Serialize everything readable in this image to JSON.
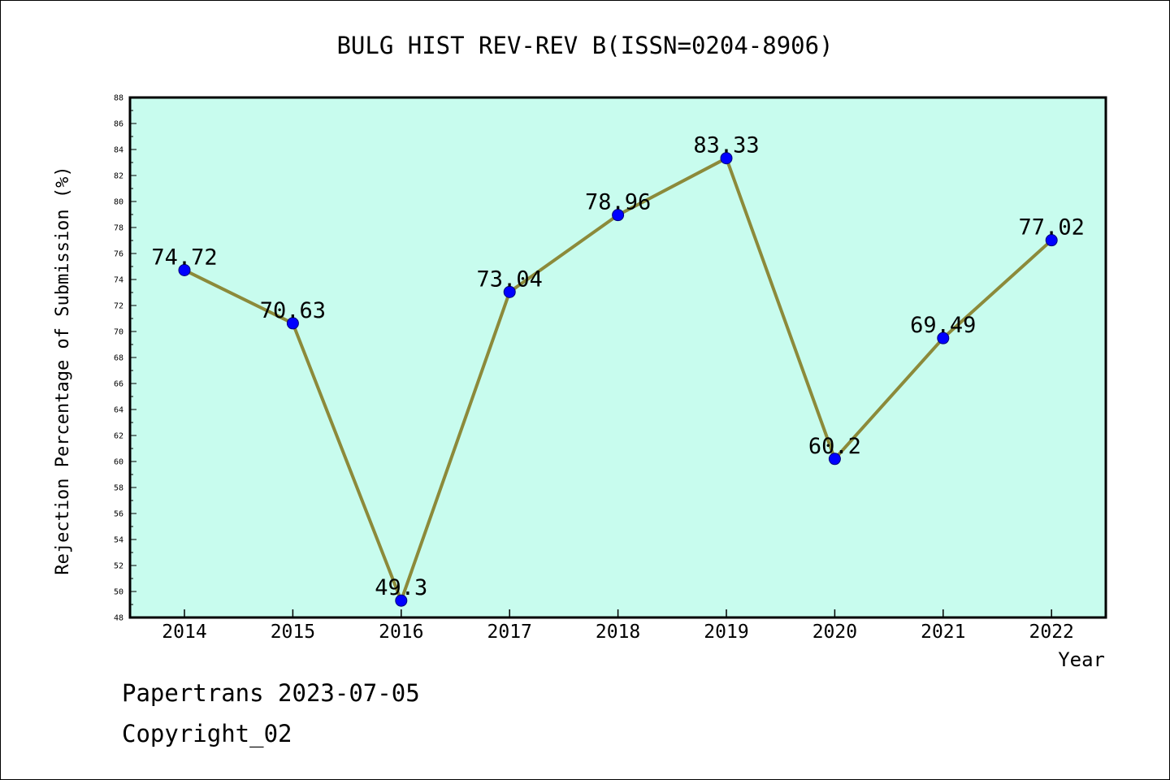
{
  "chart_data": {
    "type": "line",
    "title": "BULG HIST REV-REV B(ISSN=0204-8906)",
    "xlabel": "Year",
    "ylabel": "Rejection Percentage of Submission (%)",
    "categories": [
      "2014",
      "2015",
      "2016",
      "2017",
      "2018",
      "2019",
      "2020",
      "2021",
      "2022"
    ],
    "values": [
      74.72,
      70.63,
      49.3,
      73.04,
      78.96,
      83.33,
      60.2,
      69.49,
      77.02
    ],
    "data_labels": [
      "74.72",
      "70.63",
      "49.3",
      "73.04",
      "78.96",
      "83.33",
      "60.2",
      "69.49",
      "77.02"
    ],
    "ylim": [
      48,
      88
    ],
    "ytick_step": 2,
    "grid": false,
    "colors": {
      "plot_background": "#c8fcee",
      "line": "#8c8a3a",
      "marker": "#0000ff",
      "text": "#000000"
    }
  },
  "footer": {
    "line1": "Papertrans 2023-07-05",
    "line2": "Copyright_02"
  }
}
